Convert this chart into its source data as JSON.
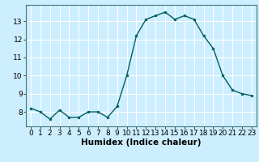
{
  "x": [
    0,
    1,
    2,
    3,
    4,
    5,
    6,
    7,
    8,
    9,
    10,
    11,
    12,
    13,
    14,
    15,
    16,
    17,
    18,
    19,
    20,
    21,
    22,
    23
  ],
  "y": [
    8.2,
    8.0,
    7.6,
    8.1,
    7.7,
    7.7,
    8.0,
    8.0,
    7.7,
    8.3,
    10.0,
    12.2,
    13.1,
    13.3,
    13.5,
    13.1,
    13.3,
    13.1,
    12.2,
    11.5,
    10.0,
    9.2,
    9.0,
    8.9
  ],
  "line_color": "#006060",
  "marker": "o",
  "marker_size": 2.0,
  "bg_color": "#cceeff",
  "grid_color": "#ffffff",
  "xlabel": "Humidex (Indice chaleur)",
  "xlim": [
    -0.5,
    23.5
  ],
  "ylim": [
    7.2,
    13.9
  ],
  "yticks": [
    8,
    9,
    10,
    11,
    12,
    13
  ],
  "xticks": [
    0,
    1,
    2,
    3,
    4,
    5,
    6,
    7,
    8,
    9,
    10,
    11,
    12,
    13,
    14,
    15,
    16,
    17,
    18,
    19,
    20,
    21,
    22,
    23
  ],
  "tick_fontsize": 6.5,
  "xlabel_fontsize": 7.5
}
